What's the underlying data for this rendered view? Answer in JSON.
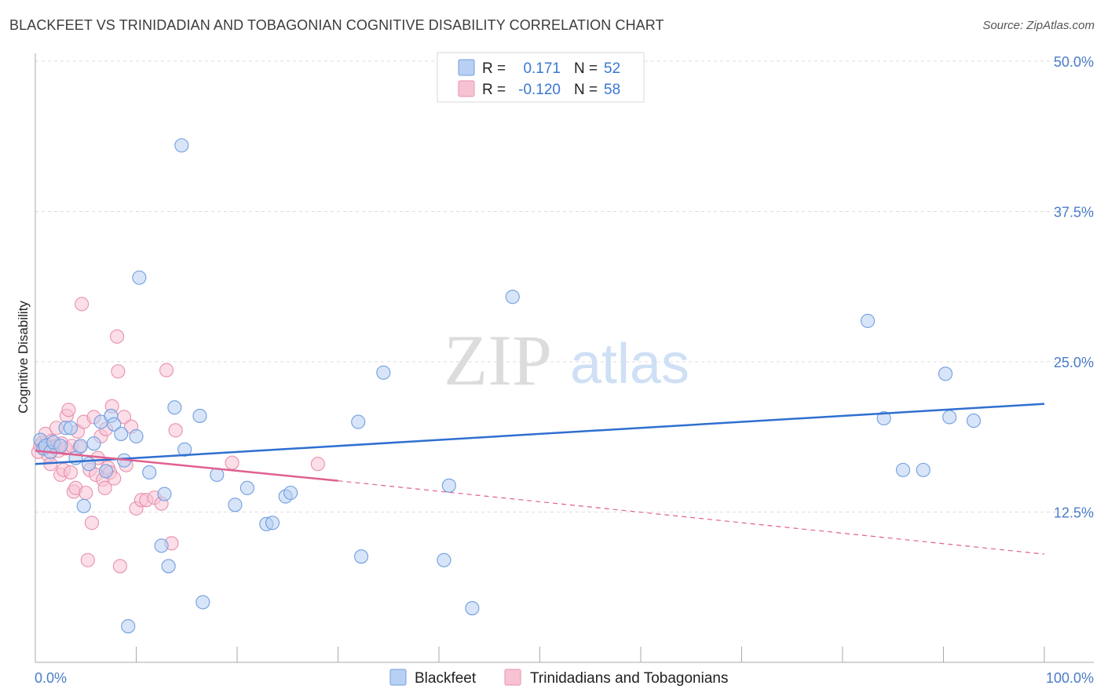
{
  "title": "BLACKFEET VS TRINIDADIAN AND TOBAGONIAN COGNITIVE DISABILITY CORRELATION CHART",
  "source": "Source: ZipAtlas.com",
  "watermark": {
    "zip": "ZIP",
    "atlas": "atlas"
  },
  "legend": {
    "r_label": "R =",
    "n_label": "N =",
    "rows": [
      {
        "r": "0.171",
        "n": "52"
      },
      {
        "r": "-0.120",
        "n": "58"
      }
    ]
  },
  "colors": {
    "blue_fill": "#b8d0f3",
    "blue_stroke": "#6f9ee0",
    "blue_line": "#2f6fd0",
    "pink_fill": "#f7c3d3",
    "pink_stroke": "#e890ae",
    "pink_line": "#e06090",
    "axis_text": "#4a7cc9",
    "grid": "#dddddd"
  },
  "chart_data": {
    "type": "scatter",
    "title": "BLACKFEET VS TRINIDADIAN AND TOBAGONIAN COGNITIVE DISABILITY CORRELATION CHART",
    "xlabel": "",
    "ylabel": "Cognitive Disability",
    "xlim": [
      0,
      100
    ],
    "ylim": [
      0,
      50
    ],
    "x_tick_labels": [
      "0.0%",
      "100.0%"
    ],
    "y_ticks": [
      12.5,
      25.0,
      37.5,
      50.0
    ],
    "y_tick_labels": [
      "12.5%",
      "25.0%",
      "37.5%",
      "50.0%"
    ],
    "grid": true,
    "legend_position": "top-center",
    "series": [
      {
        "name": "Blackfeet",
        "r": 0.171,
        "n": 52,
        "trend": {
          "x": [
            0,
            100
          ],
          "y": [
            16.5,
            21.5
          ]
        },
        "points": [
          [
            0.5,
            18.5
          ],
          [
            0.8,
            17.8
          ],
          [
            1.0,
            18.0
          ],
          [
            1.5,
            17.5
          ],
          [
            1.8,
            18.3
          ],
          [
            2.5,
            18.0
          ],
          [
            3.0,
            19.5
          ],
          [
            3.5,
            19.5
          ],
          [
            4.0,
            17.0
          ],
          [
            4.5,
            18.0
          ],
          [
            4.8,
            13.0
          ],
          [
            5.3,
            16.5
          ],
          [
            5.8,
            18.2
          ],
          [
            6.5,
            20.0
          ],
          [
            7.0,
            15.9
          ],
          [
            7.5,
            20.5
          ],
          [
            7.8,
            19.8
          ],
          [
            8.5,
            19.0
          ],
          [
            8.8,
            16.8
          ],
          [
            9.2,
            3.0
          ],
          [
            10.0,
            18.8
          ],
          [
            10.3,
            32.0
          ],
          [
            11.3,
            15.8
          ],
          [
            12.5,
            9.7
          ],
          [
            12.8,
            14.0
          ],
          [
            13.2,
            8.0
          ],
          [
            13.8,
            21.2
          ],
          [
            14.5,
            43.0
          ],
          [
            14.8,
            17.7
          ],
          [
            16.3,
            20.5
          ],
          [
            16.6,
            5.0
          ],
          [
            18.0,
            15.6
          ],
          [
            19.8,
            13.1
          ],
          [
            21.0,
            14.5
          ],
          [
            22.9,
            11.5
          ],
          [
            23.5,
            11.6
          ],
          [
            24.8,
            13.8
          ],
          [
            25.3,
            14.1
          ],
          [
            32.0,
            20.0
          ],
          [
            32.3,
            8.8
          ],
          [
            34.5,
            24.1
          ],
          [
            40.5,
            8.5
          ],
          [
            41.0,
            14.7
          ],
          [
            43.3,
            4.5
          ],
          [
            47.3,
            30.4
          ],
          [
            82.5,
            28.4
          ],
          [
            84.1,
            20.3
          ],
          [
            86.0,
            16.0
          ],
          [
            88.0,
            16.0
          ],
          [
            90.2,
            24.0
          ],
          [
            90.6,
            20.4
          ],
          [
            93.0,
            20.1
          ]
        ]
      },
      {
        "name": "Trinidadians and Tobagonians",
        "r": -0.12,
        "n": 58,
        "trend": {
          "x": [
            0,
            30
          ],
          "y": [
            17.6,
            15.1
          ]
        },
        "trend_dashed": {
          "x": [
            30,
            100
          ],
          "y": [
            15.1,
            9.0
          ]
        },
        "points": [
          [
            0.3,
            17.5
          ],
          [
            0.5,
            18.0
          ],
          [
            0.7,
            18.3
          ],
          [
            0.9,
            17.8
          ],
          [
            1.0,
            19.0
          ],
          [
            1.2,
            18.1
          ],
          [
            1.3,
            17.2
          ],
          [
            1.5,
            16.5
          ],
          [
            1.6,
            18.4
          ],
          [
            1.8,
            17.9
          ],
          [
            2.0,
            18.0
          ],
          [
            2.1,
            19.5
          ],
          [
            2.3,
            17.6
          ],
          [
            2.5,
            15.6
          ],
          [
            2.6,
            18.2
          ],
          [
            2.8,
            16.0
          ],
          [
            3.0,
            17.8
          ],
          [
            3.1,
            20.5
          ],
          [
            3.3,
            21.0
          ],
          [
            3.5,
            15.8
          ],
          [
            3.6,
            18.0
          ],
          [
            3.8,
            14.2
          ],
          [
            4.0,
            14.5
          ],
          [
            4.2,
            19.2
          ],
          [
            4.4,
            17.9
          ],
          [
            4.6,
            29.8
          ],
          [
            4.8,
            20.0
          ],
          [
            5.0,
            14.1
          ],
          [
            5.2,
            8.5
          ],
          [
            5.4,
            16.0
          ],
          [
            5.6,
            11.6
          ],
          [
            5.8,
            20.4
          ],
          [
            6.0,
            15.6
          ],
          [
            6.2,
            17.0
          ],
          [
            6.5,
            18.8
          ],
          [
            6.7,
            15.2
          ],
          [
            6.9,
            14.5
          ],
          [
            7.0,
            19.4
          ],
          [
            7.2,
            16.2
          ],
          [
            7.4,
            15.8
          ],
          [
            7.6,
            21.3
          ],
          [
            7.8,
            15.3
          ],
          [
            8.1,
            27.1
          ],
          [
            8.2,
            24.2
          ],
          [
            8.4,
            8.0
          ],
          [
            8.8,
            20.4
          ],
          [
            9.0,
            16.4
          ],
          [
            9.5,
            19.6
          ],
          [
            10.0,
            12.8
          ],
          [
            10.5,
            13.5
          ],
          [
            11.0,
            13.5
          ],
          [
            11.8,
            13.7
          ],
          [
            12.5,
            13.2
          ],
          [
            13.0,
            24.3
          ],
          [
            13.5,
            9.9
          ],
          [
            13.9,
            19.3
          ],
          [
            19.5,
            16.6
          ],
          [
            28.0,
            16.5
          ]
        ]
      }
    ]
  }
}
